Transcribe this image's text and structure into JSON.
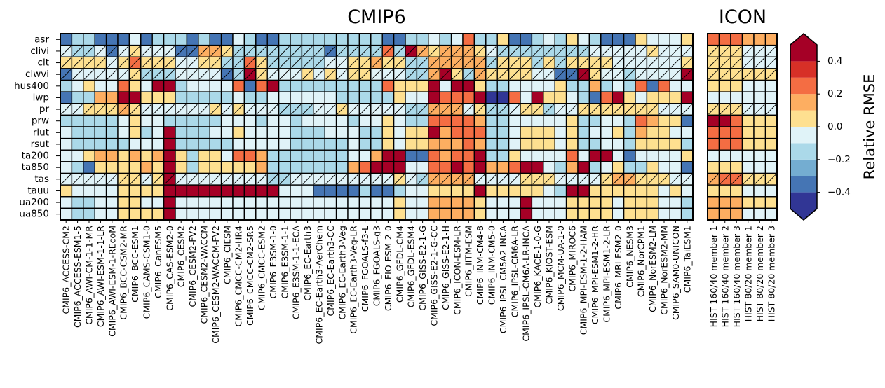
{
  "chart_data": [
    {
      "type": "heatmap",
      "title": "CMIP6",
      "rows": [
        "asr",
        "clivi",
        "clt",
        "clwvi",
        "hus400",
        "lwp",
        "pr",
        "prw",
        "rlut",
        "rsut",
        "ta200",
        "ta850",
        "tas",
        "tauu",
        "ua200",
        "ua850"
      ],
      "columns": [
        "CMIP6_ACCESS-CM2",
        "CMIP6_ACCESS-ESM1-5",
        "CMIP6_AWI-CM-1-1-MR",
        "CMIP6_AWI-ESM-1-1-LR",
        "CMIP6_AWI-ESM-1-REcoM",
        "CMIP6_BCC-CSM2-MR",
        "CMIP6_BCC-ESM1",
        "CMIP6_CAMS-CSM1-0",
        "CMIP6_CanESM5",
        "CMIP6_CAS-ESM2-0",
        "CMIP6_CESM2",
        "CMIP6_CESM2-FV2",
        "CMIP6_CESM2-WACCM",
        "CMIP6_CESM2-WACCM-FV2",
        "CMIP6_CIESM",
        "CMIP6_CMCC-CM2-HR4",
        "CMIP6_CMCC-CM2-SR5",
        "CMIP6_CMCC-ESM2",
        "CMIP6_E3SM-1-0",
        "CMIP6_E3SM-1-1",
        "CMIP6_E3SM-1-1-ECA",
        "CMIP6_EC-Earth3",
        "CMIP6_EC-Earth3-AerChem",
        "CMIP6_EC-Earth3-CC",
        "CMIP6_EC-Earth3-Veg",
        "CMIP6_EC-Earth3-Veg-LR",
        "CMIP6_FGOALS-f3-L",
        "CMIP6_FGOALS-g3",
        "CMIP6_FIO-ESM-2-0",
        "CMIP6_GFDL-CM4",
        "CMIP6_GFDL-ESM4",
        "CMIP6_GISS-E2-1-G",
        "CMIP6_GISS-E2-1-G-CC",
        "CMIP6_GISS-E2-1-H",
        "CMIP6_ICON-ESM-LR",
        "CMIP6_IITM-ESM",
        "CMIP6_INM-CM4-8",
        "CMIP6_INM-CM5-0",
        "CMIP6_IPSL-CM5A2-INCA",
        "CMIP6_IPSL-CM6A-LR",
        "CMIP6_IPSL-CM6A-LR-INCA",
        "CMIP6_KACE-1-0-G",
        "CMIP6_KIOST-ESM",
        "CMIP6_MCM-UA-1-0",
        "CMIP6_MIROC6",
        "CMIP6_MPI-ESM-1-2-HAM",
        "CMIP6_MPI-ESM1-2-HR",
        "CMIP6_MPI-ESM1-2-LR",
        "CMIP6_MRI-ESM2-0",
        "CMIP6_NESM3",
        "CMIP6_NorCPM1",
        "CMIP6_NorESM2-LM",
        "CMIP6_NorESM2-MM",
        "CMIP6_SAM0-UNICON",
        "CMIP6_TaiESM1"
      ],
      "values": [
        "ABBAAACABBBABAACBAABBBBBBBBBAABBCBCFBBDAABCBDCBAAADCCCD",
        "CBBCACDCCCAAEEDBBBBBBBBABBBBFBGEDEEEDCBBBBBBBBCCCCCDCCC",
        "DDDDCDFDDDCCDDBBFDBBBBBCCDDEDDBBEEEEEBDDDBDBDDDDCCCCCCD",
        "ACCCCCDBBBCCCCABGDCCCDCDCDDCCCBBEGDBEDDDDCCAAGDCCBCCCCG",
        "BCDCCFDCGGBCCCCFAFGBBBBBBBBBFDDDGCGGDBBCCCCDBBEBCBFAFCC",
        "ABBEEGGDDDBBBBBCBBCCCCCCBBBBBDCCGFFFGHHFCGDDCBAFGDCDDDG",
        "CCDDDEDCCCCCCDCDCCCBBBCCDCCCCCBBEEECDBBCDDBCCDDDDDDDCCC",
        "BBBBBCDCCBBBBBCCCBCCBCCCCBCCDCBBFFFFEBBCCCCCDBBCCBFEDDA",
        "CBBBBCDBCGBBBCCDCCCCBBBCCCBBDCDDGEFFFBBCDDDCDBCCDBEDDCC",
        "CBBBBBCCCGBBBBBCCCCCBBBBBCBBDCDDEEEFEBBCDDDCDBBCCBDDDDB",
        "CCDEEDEDEGDBDDCFFEBBBBBBBCCEGGAAFEFFGBBDCCCCFCGGCACCCCD",
        "CBADDDDEDGDBDDDDDEBBBBBBBEFGGGCCFFGFGEEFGGCBEGBCDBBDCCA",
        "CCCCCDDCDGCCCCCCCCBBCCCCCCCCCDCBEEEECCCCDDDCCCCDEEDDDCC",
        "DCCCCDDDDGGGGGGGGGGCCCAAAABAABCCDDDDGDDDDDCBGGDDDDDDCDC",
        "CBBCCDDCCGCCCCCCCCCCCCCCCCCCCDCCEEEEDCCCGCCCDDDDCDDDCCB",
        "CBBCCDDDDGCCCCCCCCCCCCCCCCCCCDCCEEEEDCCCGCCCDDDDCDDDCCB"
      ],
      "hatched_rows": [
        "clivi",
        "clt",
        "clwvi",
        "pr",
        "tas"
      ],
      "colorbar": {
        "label": "Relative RMSE",
        "ticks": [
          0.4,
          0.2,
          0.0,
          -0.2,
          -0.4
        ],
        "tick_labels": [
          "0.4",
          "0.2",
          "0.0",
          "−0.2",
          "−0.4"
        ],
        "range": [
          -0.5,
          0.5
        ],
        "colors": [
          "#313695",
          "#4575b4",
          "#74add1",
          "#abd9e9",
          "#e0f3f8",
          "#ffffbf",
          "#fee090",
          "#fdae61",
          "#f46d43",
          "#d73027",
          "#a50026"
        ]
      }
    },
    {
      "type": "heatmap",
      "title": "ICON",
      "rows": [
        "asr",
        "clivi",
        "clt",
        "clwvi",
        "hus400",
        "lwp",
        "pr",
        "prw",
        "rlut",
        "rsut",
        "ta200",
        "ta850",
        "tas",
        "tauu",
        "ua200",
        "ua850"
      ],
      "columns": [
        "HIST 160/40 member 1",
        "HIST 160/40 member 2",
        "HIST 160/40 member 3",
        "HIST 80/20 member 1",
        "HIST 80/20 member 2",
        "HIST 80/20 member 3"
      ],
      "values": [
        "FFFEEE",
        "DDDCCC",
        "DDDCCC",
        "DDDDDD",
        "DDDCCC",
        "CCCCCC",
        "DDDCCC",
        "GGFDDD",
        "FFFDDD",
        "FFFDDD",
        "CCCCCC",
        "DDDCCC",
        "EFFDDD",
        "DDDCCC",
        "EEEDDD",
        "EEECCC"
      ]
    }
  ]
}
